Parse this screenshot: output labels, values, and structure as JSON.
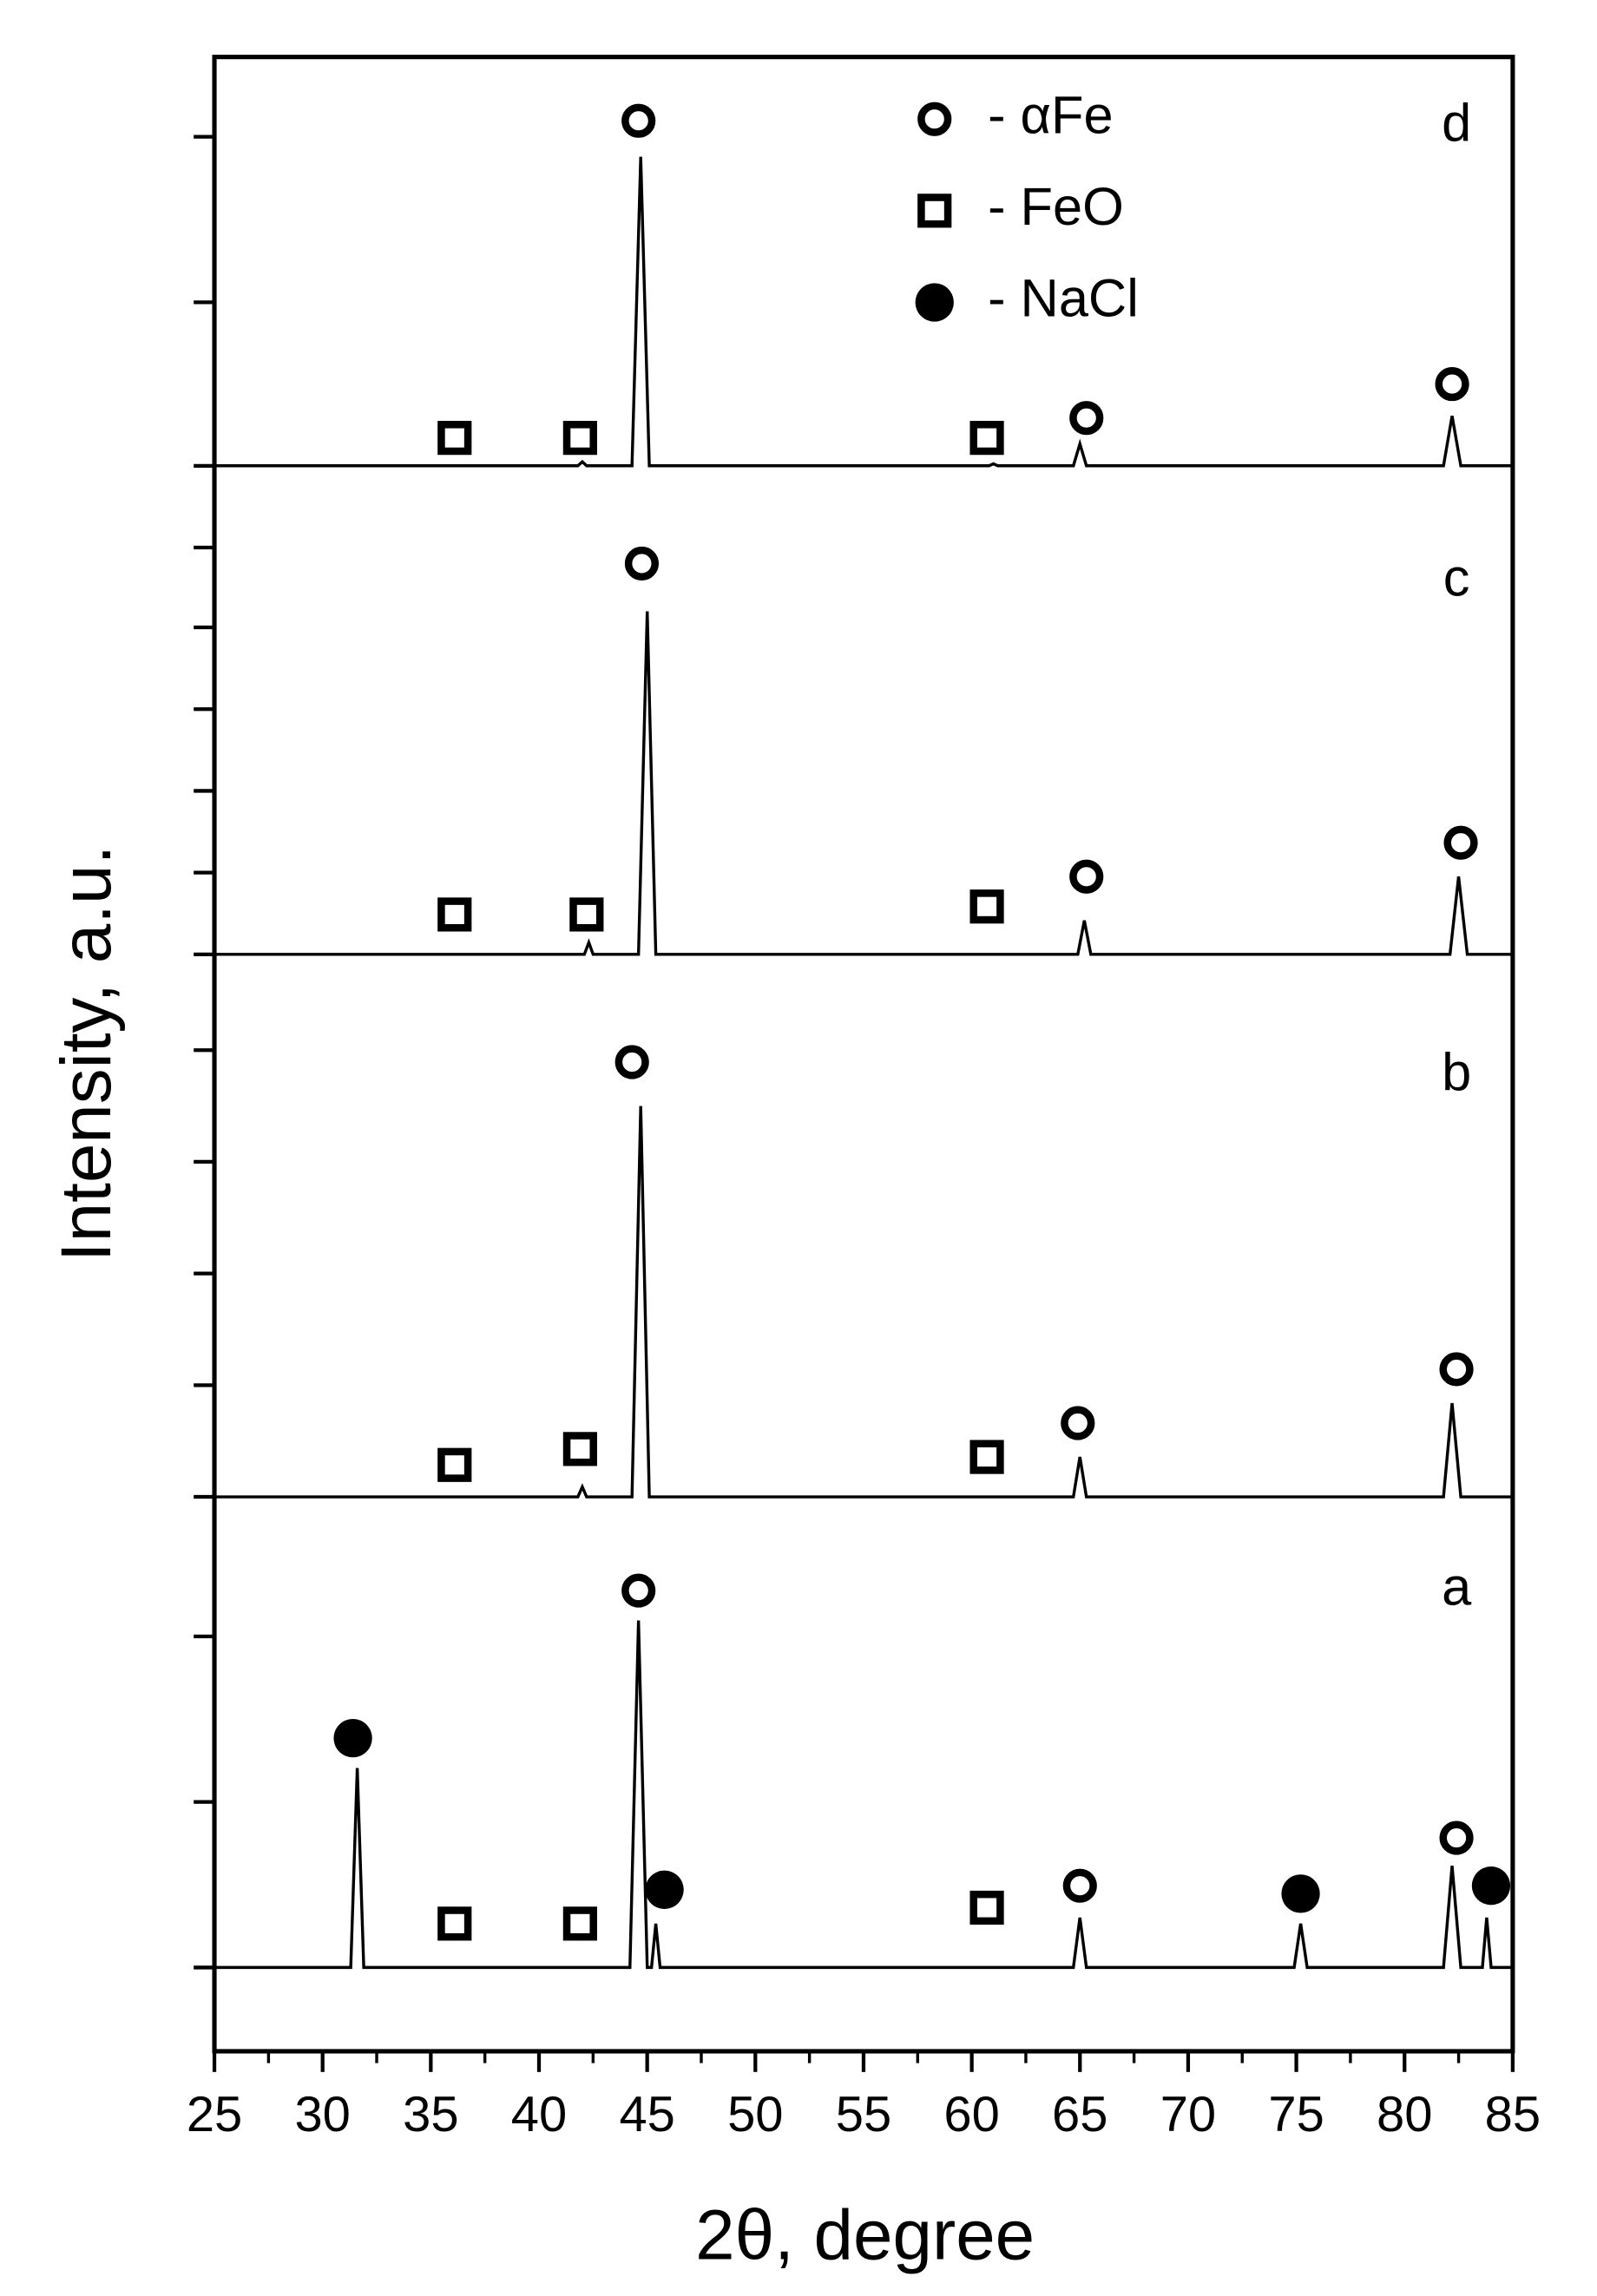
{
  "chart_data": {
    "type": "line",
    "x_label": "2θ, degree",
    "y_label": "Intensity, a.u.",
    "xlim": [
      25,
      85
    ],
    "xticks": [
      25,
      30,
      35,
      40,
      45,
      50,
      55,
      60,
      65,
      70,
      75,
      80,
      85
    ],
    "ylim": [
      0,
      100
    ],
    "yticks": [
      4.2,
      12.5,
      20.8,
      27.8,
      33.4,
      39.0,
      44.6,
      50.2,
      55.0,
      59.1,
      63.2,
      67.3,
      71.4,
      75.4,
      79.5,
      87.7,
      96.0
    ],
    "series": [
      {
        "name": "a",
        "color": "#000000",
        "x": [
          25,
          31.3,
          31.6,
          31.9,
          44.2,
          44.6,
          45.0,
          45.2,
          45.4,
          45.6,
          64.7,
          65.0,
          65.3,
          74.9,
          75.2,
          75.5,
          81.8,
          82.2,
          82.6,
          83.6,
          83.8,
          84.0,
          85
        ],
        "values": [
          4.2,
          4.2,
          14.2,
          4.2,
          4.2,
          21.6,
          4.2,
          4.2,
          6.4,
          4.2,
          4.2,
          6.7,
          4.2,
          4.2,
          6.4,
          4.2,
          4.2,
          9.3,
          4.2,
          4.2,
          6.7,
          4.2,
          4.2
        ]
      },
      {
        "name": "b",
        "color": "#000000",
        "x": [
          25,
          41.8,
          42.0,
          42.2,
          44.3,
          44.7,
          45.1,
          64.7,
          65.0,
          65.3,
          81.8,
          82.2,
          82.6,
          85
        ],
        "values": [
          27.8,
          27.8,
          28.3,
          27.8,
          27.8,
          47.4,
          27.8,
          27.8,
          29.8,
          27.8,
          27.8,
          32.5,
          27.8,
          27.8
        ]
      },
      {
        "name": "c",
        "color": "#000000",
        "x": [
          25,
          42.1,
          42.3,
          42.5,
          44.6,
          45.0,
          45.4,
          64.9,
          65.2,
          65.5,
          82.1,
          82.5,
          82.9,
          85
        ],
        "values": [
          55.0,
          55.0,
          55.6,
          55.0,
          55.0,
          72.2,
          55.0,
          55.0,
          56.7,
          55.0,
          55.0,
          58.9,
          55.0,
          55.0
        ]
      },
      {
        "name": "d",
        "color": "#000000",
        "x": [
          25,
          41.8,
          42.0,
          42.2,
          44.3,
          44.7,
          45.1,
          60.8,
          61.0,
          61.2,
          64.7,
          65.0,
          65.3,
          81.8,
          82.2,
          82.6,
          85
        ],
        "values": [
          79.5,
          79.5,
          79.7,
          79.5,
          79.5,
          95.0,
          79.5,
          79.5,
          79.6,
          79.5,
          79.5,
          80.6,
          79.5,
          79.5,
          82.0,
          79.5,
          79.5
        ]
      }
    ],
    "markers": [
      {
        "name": "- αFe",
        "symbol": "ring",
        "x": [
          44.6,
          65.0,
          82.4,
          44.3,
          64.9,
          82.4,
          44.75,
          65.3,
          82.6,
          44.6,
          65.3,
          82.2
        ],
        "y": [
          23.1,
          8.3,
          10.7,
          49.6,
          31.5,
          34.2,
          74.6,
          58.9,
          60.6,
          96.8,
          81.9,
          83.6
        ]
      },
      {
        "name": "- FeO",
        "symbol": "square",
        "x": [
          36.1,
          41.9,
          60.7,
          36.1,
          41.9,
          60.7,
          36.1,
          42.2,
          60.7,
          36.1,
          41.9,
          60.7
        ],
        "y": [
          6.4,
          6.4,
          7.2,
          29.4,
          30.2,
          29.8,
          57.0,
          57.0,
          57.4,
          80.9,
          80.9,
          80.9
        ]
      },
      {
        "name": "- NaCl",
        "symbol": "dot",
        "x": [
          31.4,
          45.8,
          75.2,
          84.0
        ],
        "y": [
          15.7,
          8.1,
          7.9,
          8.3
        ]
      }
    ]
  }
}
